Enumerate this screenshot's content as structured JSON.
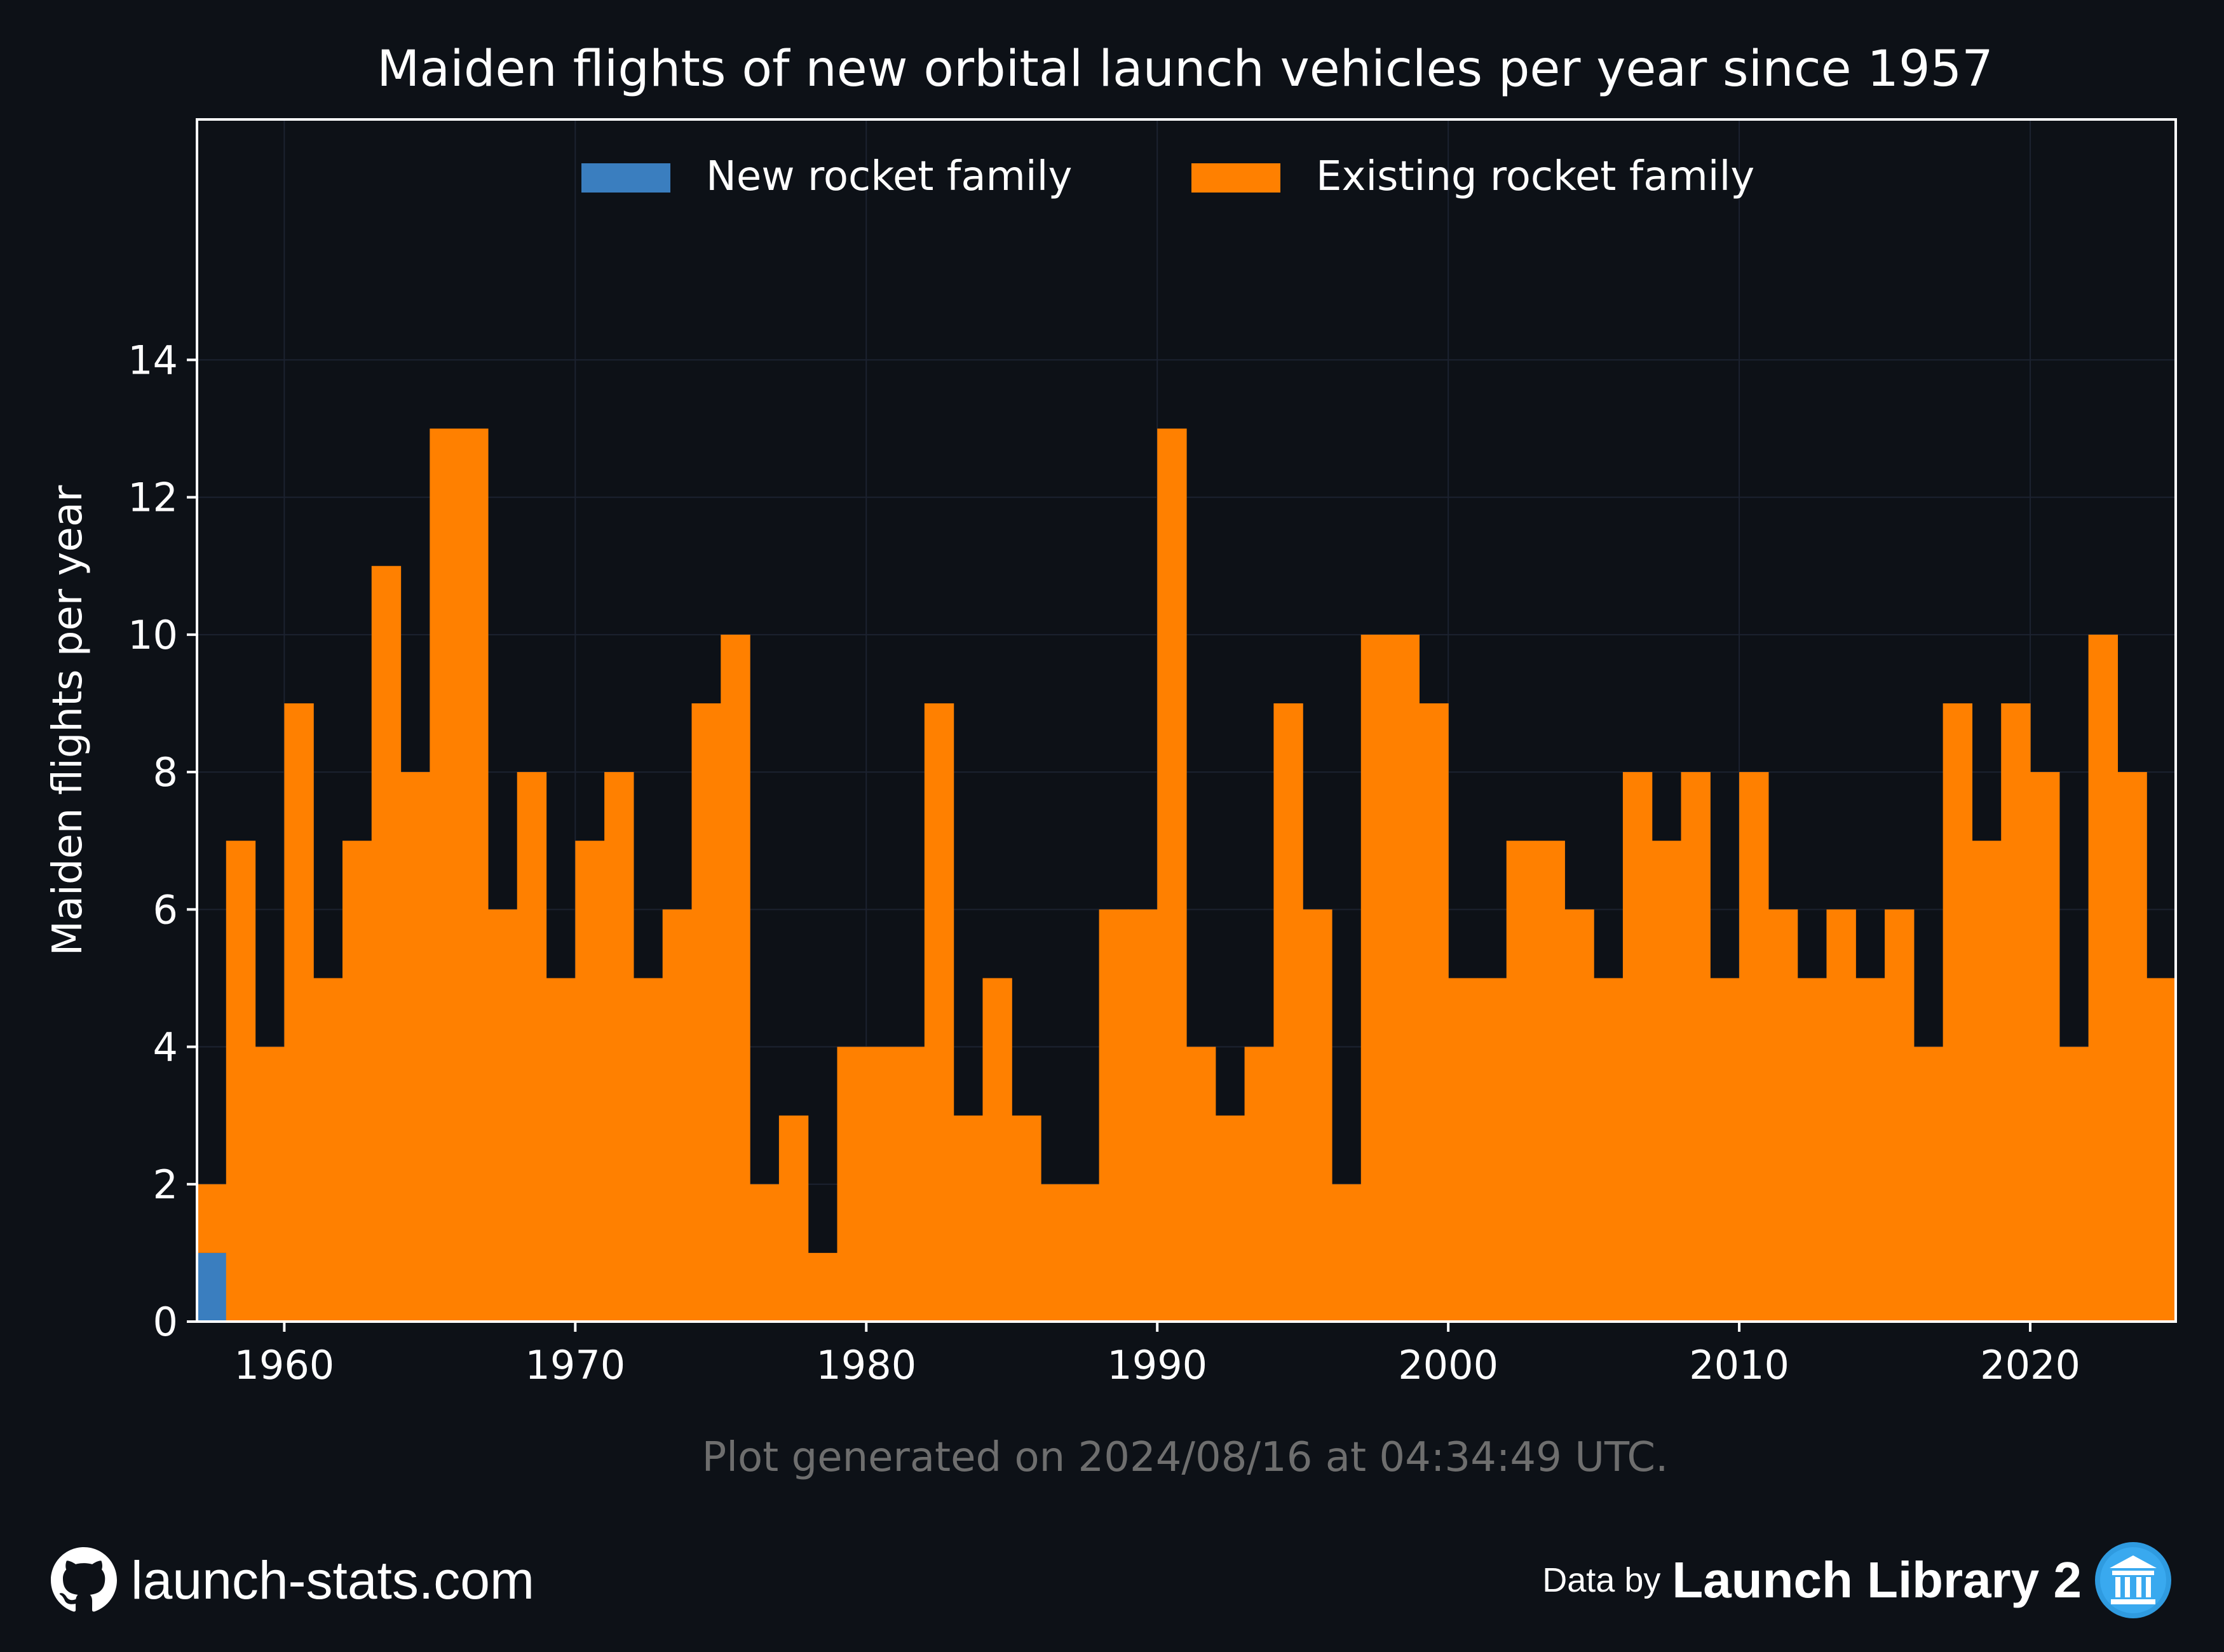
{
  "chart_data": {
    "type": "bar",
    "stacked": true,
    "title": "Maiden flights of new orbital launch vehicles per year since 1957",
    "xlabel": "",
    "ylabel": "Maiden flights per year",
    "xlim": [
      1957,
      2025
    ],
    "ylim": [
      0,
      17.5
    ],
    "xticks": [
      1960,
      1970,
      1980,
      1990,
      2000,
      2010,
      2020
    ],
    "yticks": [
      0,
      2,
      4,
      6,
      8,
      10,
      12,
      14
    ],
    "grid": true,
    "legend_position": "top-center",
    "years": [
      1957,
      1958,
      1959,
      1960,
      1961,
      1962,
      1963,
      1964,
      1965,
      1966,
      1967,
      1968,
      1969,
      1970,
      1971,
      1972,
      1973,
      1974,
      1975,
      1976,
      1977,
      1978,
      1979,
      1980,
      1981,
      1982,
      1983,
      1984,
      1985,
      1986,
      1987,
      1988,
      1989,
      1990,
      1991,
      1992,
      1993,
      1994,
      1995,
      1996,
      1997,
      1998,
      1999,
      2000,
      2001,
      2002,
      2003,
      2004,
      2005,
      2006,
      2007,
      2008,
      2009,
      2010,
      2011,
      2012,
      2013,
      2014,
      2015,
      2016,
      2017,
      2018,
      2019,
      2020,
      2021,
      2022,
      2023,
      2024
    ],
    "series": [
      {
        "name": "New rocket family",
        "color": "#3a7ebf",
        "values": [
          1,
          0,
          0,
          0,
          0,
          0,
          0,
          0,
          0,
          0,
          0,
          0,
          0,
          0,
          0,
          0,
          0,
          0,
          0,
          0,
          0,
          0,
          0,
          0,
          0,
          0,
          0,
          0,
          0,
          0,
          0,
          0,
          0,
          0,
          0,
          0,
          0,
          0,
          0,
          0,
          0,
          0,
          0,
          0,
          0,
          0,
          0,
          0,
          0,
          0,
          0,
          0,
          0,
          0,
          0,
          0,
          0,
          0,
          0,
          0,
          0,
          0,
          0,
          0,
          0,
          0,
          0,
          0
        ]
      },
      {
        "name": "Existing rocket family",
        "color": "#ff8000",
        "values": [
          1,
          7,
          4,
          9,
          5,
          7,
          11,
          8,
          13,
          13,
          6,
          8,
          5,
          7,
          8,
          5,
          6,
          9,
          10,
          2,
          3,
          1,
          4,
          4,
          4,
          9,
          3,
          5,
          3,
          2,
          2,
          6,
          6,
          13,
          4,
          3,
          4,
          9,
          6,
          2,
          10,
          10,
          9,
          5,
          5,
          7,
          7,
          6,
          5,
          8,
          7,
          8,
          5,
          8,
          6,
          5,
          6,
          5,
          6,
          4,
          9,
          7,
          9,
          8,
          4,
          10,
          8,
          5
        ]
      }
    ]
  },
  "footnote": "Plot generated on 2024/08/16 at 04:34:49 UTC.",
  "footer": {
    "site": "launch-stats.com",
    "credit_prefix": "Data by",
    "credit_name": "Launch Library 2"
  },
  "colors": {
    "background": "#0d1117",
    "text": "#ffffff",
    "footnote": "#6e6e6e",
    "grid": "#1c2230"
  }
}
